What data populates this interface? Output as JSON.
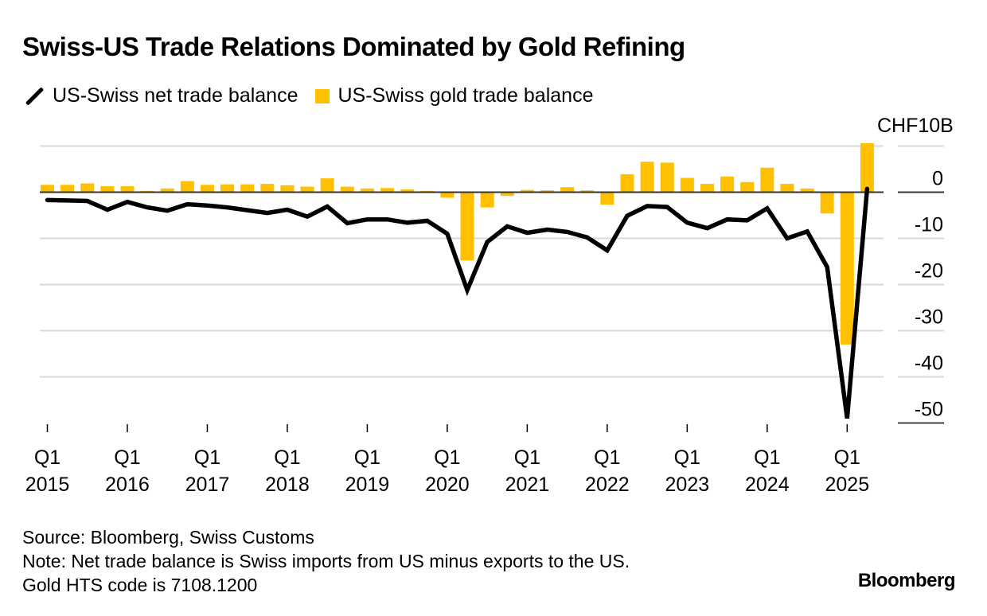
{
  "title": "Swiss-US Trade Relations Dominated by Gold Refining",
  "legend": [
    {
      "label": "US-Swiss net trade balance",
      "type": "line",
      "color": "#000000"
    },
    {
      "label": "US-Swiss gold trade balance",
      "type": "bar",
      "color": "#ffc000"
    }
  ],
  "unit_label": "CHF10B",
  "footer": {
    "source": "Source: Bloomberg, Swiss Customs",
    "note": "Note: Net trade balance is Swiss imports from US minus exports to the US.",
    "note2": "Gold HTS code is 7108.1200",
    "brand": "Bloomberg"
  },
  "chart_data": {
    "type": "bar+line",
    "title": "Swiss-US Trade Relations Dominated by Gold Refining",
    "ylabel": "CHF10B",
    "ylim": [
      -55,
      10
    ],
    "yticks": [
      0,
      -10,
      -20,
      -30,
      -40,
      -50
    ],
    "grid": true,
    "y_axis_side": "right",
    "legend_position": "top-left",
    "x_tick_labels": [
      {
        "quarter": "Q1",
        "year": "2015"
      },
      {
        "quarter": "Q1",
        "year": "2016"
      },
      {
        "quarter": "Q1",
        "year": "2017"
      },
      {
        "quarter": "Q1",
        "year": "2018"
      },
      {
        "quarter": "Q1",
        "year": "2019"
      },
      {
        "quarter": "Q1",
        "year": "2020"
      },
      {
        "quarter": "Q1",
        "year": "2021"
      },
      {
        "quarter": "Q1",
        "year": "2022"
      },
      {
        "quarter": "Q1",
        "year": "2023"
      },
      {
        "quarter": "Q1",
        "year": "2024"
      },
      {
        "quarter": "Q1",
        "year": "2025"
      }
    ],
    "x": [
      "Q1 2015",
      "Q2 2015",
      "Q3 2015",
      "Q4 2015",
      "Q1 2016",
      "Q2 2016",
      "Q3 2016",
      "Q4 2016",
      "Q1 2017",
      "Q2 2017",
      "Q3 2017",
      "Q4 2017",
      "Q1 2018",
      "Q2 2018",
      "Q3 2018",
      "Q4 2018",
      "Q1 2019",
      "Q2 2019",
      "Q3 2019",
      "Q4 2019",
      "Q1 2020",
      "Q2 2020",
      "Q3 2020",
      "Q4 2020",
      "Q1 2021",
      "Q2 2021",
      "Q3 2021",
      "Q4 2021",
      "Q1 2022",
      "Q2 2022",
      "Q3 2022",
      "Q4 2022",
      "Q1 2023",
      "Q2 2023",
      "Q3 2023",
      "Q4 2023",
      "Q1 2024",
      "Q2 2024",
      "Q3 2024",
      "Q4 2024",
      "Q1 2025",
      "Q2 2025"
    ],
    "series": [
      {
        "name": "US-Swiss net trade balance",
        "type": "line",
        "color": "#000000",
        "values": [
          -1.7,
          -1.8,
          -1.9,
          -3.8,
          -2.1,
          -3.3,
          -4.0,
          -2.6,
          -2.9,
          -3.3,
          -3.9,
          -4.5,
          -3.8,
          -5.3,
          -3.1,
          -6.7,
          -5.9,
          -5.9,
          -6.6,
          -6.2,
          -9.0,
          -21.2,
          -10.8,
          -7.4,
          -8.8,
          -8.1,
          -8.6,
          -9.8,
          -12.6,
          -5.1,
          -3.0,
          -3.2,
          -6.6,
          -7.8,
          -5.9,
          -6.1,
          -3.5,
          -10.0,
          -8.5,
          -16.2,
          -49.0,
          0.7
        ]
      },
      {
        "name": "US-Swiss gold trade balance",
        "type": "bar",
        "color": "#ffc000",
        "values": [
          1.6,
          1.6,
          1.9,
          1.3,
          1.3,
          0.3,
          0.8,
          2.4,
          1.6,
          1.7,
          1.7,
          1.8,
          1.5,
          1.2,
          3.0,
          1.2,
          0.8,
          0.9,
          0.6,
          0.3,
          -1.2,
          -14.8,
          -3.3,
          -0.8,
          0.5,
          0.4,
          1.1,
          0.4,
          -2.7,
          3.9,
          6.6,
          6.4,
          3.1,
          1.8,
          3.4,
          2.2,
          5.3,
          1.8,
          0.8,
          -4.6,
          -33.0,
          10.6
        ]
      }
    ]
  }
}
